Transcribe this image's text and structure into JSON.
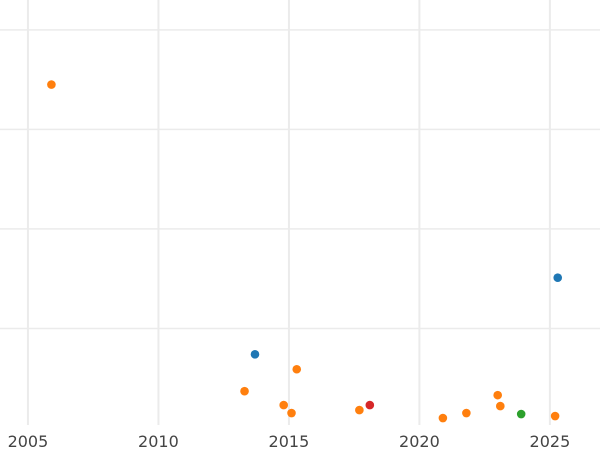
{
  "chart_data": {
    "type": "scatter",
    "title": "",
    "xlabel": "",
    "ylabel": "",
    "xlim": [
      2003.93,
      2026.92
    ],
    "ylim": [
      0.03,
      4.3
    ],
    "x_ticks": [
      2005,
      2010,
      2015,
      2020,
      2025
    ],
    "x_tick_labels": [
      "2005",
      "2010",
      "2015",
      "2020",
      "2025"
    ],
    "y_gridlines": [
      1,
      2,
      3,
      4
    ],
    "y_units_note_hidden": false,
    "grid": true,
    "colors": {
      "blue": "#1f77b4",
      "orange": "#ff7f0e",
      "green": "#2ca02c",
      "red": "#d62728",
      "grid": "#ebebeb"
    },
    "points": [
      {
        "x": 2005.9,
        "y": 3.45,
        "color": "#ff7f0e"
      },
      {
        "x": 2013.7,
        "y": 0.74,
        "color": "#1f77b4"
      },
      {
        "x": 2015.3,
        "y": 0.59,
        "color": "#ff7f0e"
      },
      {
        "x": 2013.3,
        "y": 0.37,
        "color": "#ff7f0e"
      },
      {
        "x": 2014.8,
        "y": 0.23,
        "color": "#ff7f0e"
      },
      {
        "x": 2015.1,
        "y": 0.15,
        "color": "#ff7f0e"
      },
      {
        "x": 2017.7,
        "y": 0.18,
        "color": "#ff7f0e"
      },
      {
        "x": 2018.1,
        "y": 0.23,
        "color": "#d62728"
      },
      {
        "x": 2020.9,
        "y": 0.1,
        "color": "#ff7f0e"
      },
      {
        "x": 2021.8,
        "y": 0.15,
        "color": "#ff7f0e"
      },
      {
        "x": 2023.0,
        "y": 0.33,
        "color": "#ff7f0e"
      },
      {
        "x": 2023.1,
        "y": 0.22,
        "color": "#ff7f0e"
      },
      {
        "x": 2023.9,
        "y": 0.14,
        "color": "#2ca02c"
      },
      {
        "x": 2025.2,
        "y": 0.12,
        "color": "#ff7f0e"
      },
      {
        "x": 2025.3,
        "y": 1.51,
        "color": "#1f77b4"
      }
    ]
  }
}
